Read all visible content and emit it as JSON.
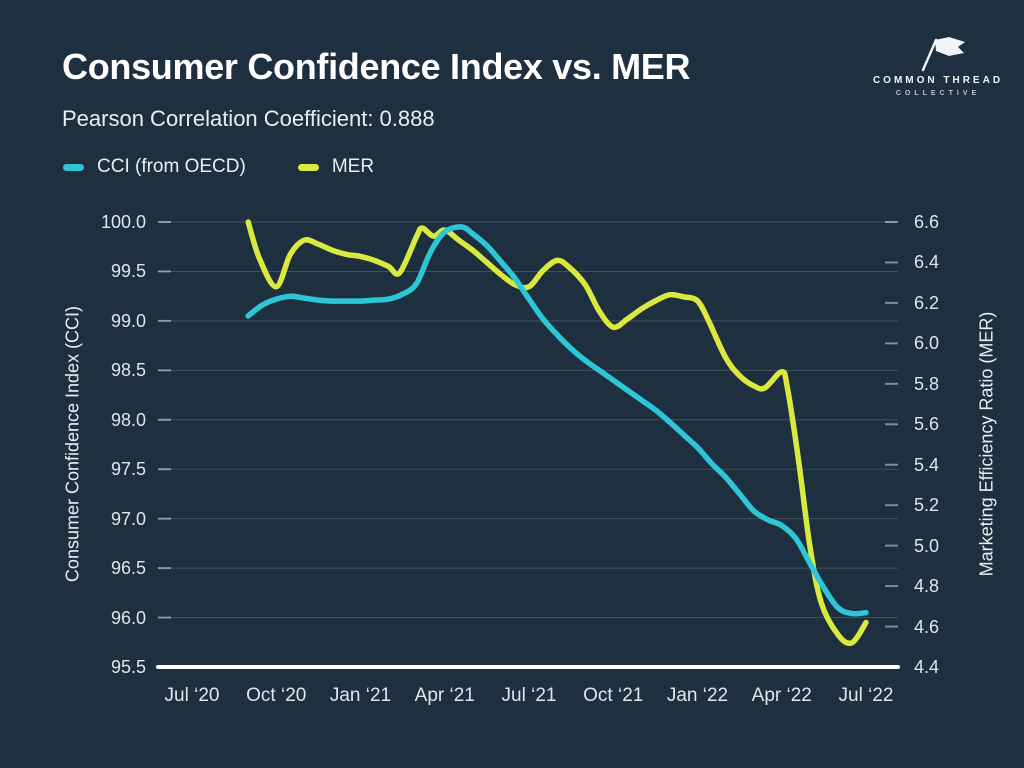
{
  "header": {
    "title": "Consumer Confidence Index vs. MER",
    "subtitle": "Pearson Correlation Coefficient: 0.888"
  },
  "logo": {
    "icon": "flag-icon",
    "line1": "COMMON THREAD",
    "line2": "COLLECTIVE"
  },
  "legend": [
    {
      "label": "CCI (from OECD)",
      "color": "#2cc6d7"
    },
    {
      "label": "MER",
      "color": "#d9e93d"
    }
  ],
  "colors": {
    "background": "#1e2f3f",
    "cci_line": "#2cc6d7",
    "mer_line": "#d9e93d",
    "gridline": "rgba(255,255,255,0.16)",
    "tick_dash": "rgba(255,255,255,0.45)",
    "axis_baseline": "#ffffff",
    "text": "#e9eef3"
  },
  "chart_data": {
    "type": "line",
    "title": "Consumer Confidence Index vs. MER",
    "subtitle": "Pearson Correlation Coefficient: 0.888",
    "grid": "horizontal-only",
    "legend_position": "top-left",
    "x_axis": {
      "ticks": [
        "Jul ‘20",
        "Oct ‘20",
        "Jan ‘21",
        "Apr ‘21",
        "Jul ‘21",
        "Oct ‘21",
        "Jan ‘22",
        "Apr ‘22",
        "Jul ‘22"
      ],
      "tick_month_offsets": [
        0,
        3,
        6,
        9,
        12,
        15,
        18,
        21,
        24
      ],
      "range_months": [
        0,
        24
      ]
    },
    "left_axis": {
      "label": "Consumer Confidence Index (CCI)",
      "ticks": [
        "100.0",
        "99.5",
        "99.0",
        "98.5",
        "98.0",
        "97.5",
        "97.0",
        "96.5",
        "96.0",
        "95.5"
      ],
      "range": [
        95.5,
        100.0
      ]
    },
    "right_axis": {
      "label": "Marketing Efficiency Ratio (MER)",
      "ticks": [
        "6.6",
        "6.4",
        "6.2",
        "6.0",
        "5.8",
        "5.6",
        "5.4",
        "5.2",
        "5.0",
        "4.8",
        "4.6",
        "4.4"
      ],
      "range": [
        4.4,
        6.6
      ]
    },
    "series": [
      {
        "name": "MER",
        "axis": "right",
        "color": "#d9e93d",
        "points": [
          [
            2,
            6.6
          ],
          [
            2.4,
            6.42
          ],
          [
            3,
            6.28
          ],
          [
            3.5,
            6.44
          ],
          [
            4,
            6.51
          ],
          [
            4.5,
            6.49
          ],
          [
            5,
            6.46
          ],
          [
            5.5,
            6.44
          ],
          [
            6,
            6.43
          ],
          [
            6.5,
            6.41
          ],
          [
            7,
            6.38
          ],
          [
            7.4,
            6.35
          ],
          [
            8,
            6.53
          ],
          [
            8.2,
            6.57
          ],
          [
            8.6,
            6.53
          ],
          [
            9,
            6.56
          ],
          [
            9.5,
            6.51
          ],
          [
            10,
            6.46
          ],
          [
            10.5,
            6.4
          ],
          [
            11,
            6.34
          ],
          [
            11.5,
            6.29
          ],
          [
            12,
            6.28
          ],
          [
            12.5,
            6.36
          ],
          [
            13,
            6.41
          ],
          [
            13.4,
            6.38
          ],
          [
            14,
            6.29
          ],
          [
            14.5,
            6.16
          ],
          [
            15,
            6.08
          ],
          [
            15.5,
            6.12
          ],
          [
            16,
            6.17
          ],
          [
            16.5,
            6.21
          ],
          [
            17,
            6.24
          ],
          [
            17.5,
            6.23
          ],
          [
            18,
            6.21
          ],
          [
            18.4,
            6.11
          ],
          [
            19,
            5.93
          ],
          [
            19.5,
            5.84
          ],
          [
            20,
            5.79
          ],
          [
            20.4,
            5.78
          ],
          [
            21,
            5.86
          ],
          [
            21.2,
            5.78
          ],
          [
            21.6,
            5.42
          ],
          [
            22,
            5.0
          ],
          [
            22.4,
            4.72
          ],
          [
            23,
            4.56
          ],
          [
            23.5,
            4.52
          ],
          [
            24,
            4.62
          ]
        ]
      },
      {
        "name": "CCI (from OECD)",
        "axis": "left",
        "color": "#2cc6d7",
        "points": [
          [
            2,
            99.05
          ],
          [
            2.5,
            99.16
          ],
          [
            3,
            99.22
          ],
          [
            3.5,
            99.25
          ],
          [
            4,
            99.23
          ],
          [
            4.5,
            99.21
          ],
          [
            5,
            99.2
          ],
          [
            5.5,
            99.2
          ],
          [
            6,
            99.2
          ],
          [
            6.5,
            99.21
          ],
          [
            7,
            99.22
          ],
          [
            7.5,
            99.27
          ],
          [
            8,
            99.38
          ],
          [
            8.5,
            99.7
          ],
          [
            9,
            99.9
          ],
          [
            9.6,
            99.95
          ],
          [
            10,
            99.88
          ],
          [
            10.5,
            99.76
          ],
          [
            11,
            99.6
          ],
          [
            11.5,
            99.43
          ],
          [
            12,
            99.22
          ],
          [
            12.5,
            99.02
          ],
          [
            13,
            98.86
          ],
          [
            13.5,
            98.72
          ],
          [
            14,
            98.6
          ],
          [
            14.5,
            98.5
          ],
          [
            15,
            98.4
          ],
          [
            15.5,
            98.3
          ],
          [
            16,
            98.2
          ],
          [
            16.5,
            98.1
          ],
          [
            17,
            97.98
          ],
          [
            17.5,
            97.85
          ],
          [
            18,
            97.72
          ],
          [
            18.5,
            97.56
          ],
          [
            19,
            97.42
          ],
          [
            19.5,
            97.25
          ],
          [
            20,
            97.08
          ],
          [
            20.5,
            96.99
          ],
          [
            21,
            96.93
          ],
          [
            21.5,
            96.8
          ],
          [
            22,
            96.55
          ],
          [
            22.5,
            96.3
          ],
          [
            23,
            96.1
          ],
          [
            23.5,
            96.04
          ],
          [
            24,
            96.05
          ]
        ]
      }
    ]
  }
}
